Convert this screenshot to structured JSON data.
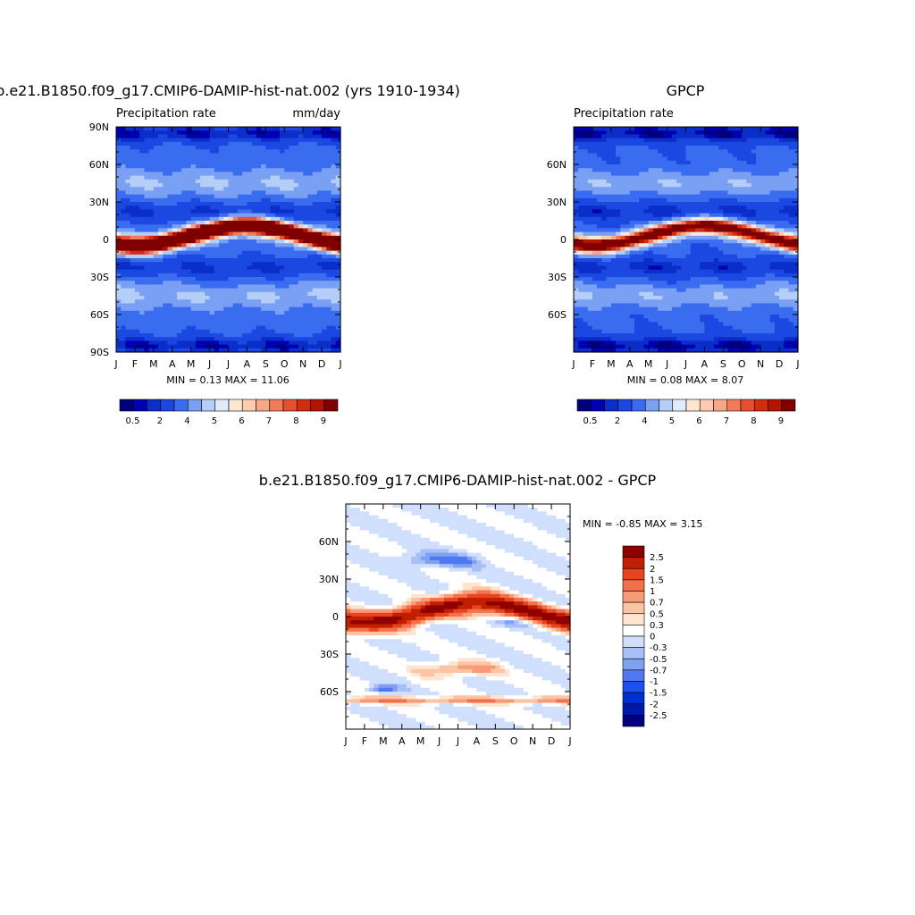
{
  "palettes": {
    "abs": [
      "#00007f",
      "#0000b2",
      "#0c2ec8",
      "#1a48e0",
      "#3a6cf0",
      "#7aa0f4",
      "#b4cef8",
      "#e0ecfc",
      "#fde6d2",
      "#fccbb0",
      "#f8a884",
      "#f07c5a",
      "#e6502e",
      "#d42c0e",
      "#b21400",
      "#7f0000"
    ],
    "diff": [
      "#000080",
      "#0018a8",
      "#0030d0",
      "#1e50f0",
      "#5078f0",
      "#80a0f0",
      "#a8c0f8",
      "#d0e0fc",
      "#ffffff",
      "#ffe4d0",
      "#fcc4a4",
      "#f89c78",
      "#f4704c",
      "#e84420",
      "#c02000",
      "#900000"
    ]
  },
  "chart_data": [
    {
      "type": "heatmap",
      "title": "b.e21.B1850.f09_g17.CMIP6-DAMIP-hist-nat.002 (yrs 1910-1934)",
      "subtitle_left": "Precipitation rate",
      "subtitle_right": "mm/day",
      "x_ticks": [
        "J",
        "F",
        "M",
        "A",
        "M",
        "J",
        "J",
        "A",
        "S",
        "O",
        "N",
        "D",
        "J"
      ],
      "y_ticks": [
        "90N",
        "60N",
        "30N",
        "0",
        "30S",
        "60S",
        "90S"
      ],
      "ylim": [
        -90,
        90
      ],
      "stats": "MIN =   0.13 MAX =  11.06",
      "colorbar_labels": [
        "0.5",
        "2",
        "4",
        "5",
        "6",
        "7",
        "8",
        "9"
      ],
      "colorbar_levels": [
        0.2,
        0.5,
        1,
        2,
        3,
        4,
        5,
        5.5,
        6,
        6.5,
        7,
        7.5,
        8,
        8.5,
        9
      ],
      "field": {
        "itcz_amp": 11.06,
        "itcz_width": 7,
        "base": 2.4,
        "itcz_shift": 0,
        "sh_bias": 0.45
      }
    },
    {
      "type": "heatmap",
      "title": "GPCP",
      "subtitle_left": "Precipitation rate",
      "subtitle_right": "",
      "x_ticks": [
        "J",
        "F",
        "M",
        "A",
        "M",
        "J",
        "J",
        "A",
        "S",
        "O",
        "N",
        "D",
        "J"
      ],
      "y_ticks": [
        "60N",
        "30N",
        "0",
        "30S",
        "60S"
      ],
      "ylim": [
        -90,
        90
      ],
      "stats": "MIN =   0.08 MAX =   8.07",
      "colorbar_labels": [
        "0.5",
        "2",
        "4",
        "5",
        "6",
        "7",
        "8",
        "9"
      ],
      "colorbar_levels": [
        0.2,
        0.5,
        1,
        2,
        3,
        4,
        5,
        5.5,
        6,
        6.5,
        7,
        7.5,
        8,
        8.5,
        9
      ],
      "field": {
        "itcz_amp": 8.07,
        "itcz_width": 7,
        "base": 2.2,
        "itcz_shift": 0,
        "sh_bias": 0.3
      }
    },
    {
      "type": "heatmap",
      "title": "b.e21.B1850.f09_g17.CMIP6-DAMIP-hist-nat.002 - GPCP",
      "subtitle_left": "",
      "subtitle_right": "",
      "x_ticks": [
        "J",
        "F",
        "M",
        "A",
        "M",
        "J",
        "J",
        "A",
        "S",
        "O",
        "N",
        "D",
        "J"
      ],
      "y_ticks": [
        "60N",
        "30N",
        "0",
        "30S",
        "60S"
      ],
      "ylim": [
        -90,
        90
      ],
      "stats": "MIN =  -0.85 MAX =   3.15",
      "colorbar_labels": [
        "2.5",
        "2",
        "1.5",
        "1",
        "0.7",
        "0.5",
        "0.3",
        "0",
        "-0.3",
        "-0.5",
        "-0.7",
        "-1",
        "-1.5",
        "-2",
        "-2.5"
      ],
      "colorbar_levels": [
        -2.5,
        -2,
        -1.5,
        -1,
        -0.7,
        -0.5,
        -0.3,
        0,
        0.3,
        0.5,
        0.7,
        1,
        1.5,
        2,
        2.5
      ],
      "field": {
        "itcz_amp": 3.15,
        "itcz_width": 8,
        "base": 0.0,
        "itcz_shift": 0,
        "sh_bias": 0.0
      }
    }
  ]
}
